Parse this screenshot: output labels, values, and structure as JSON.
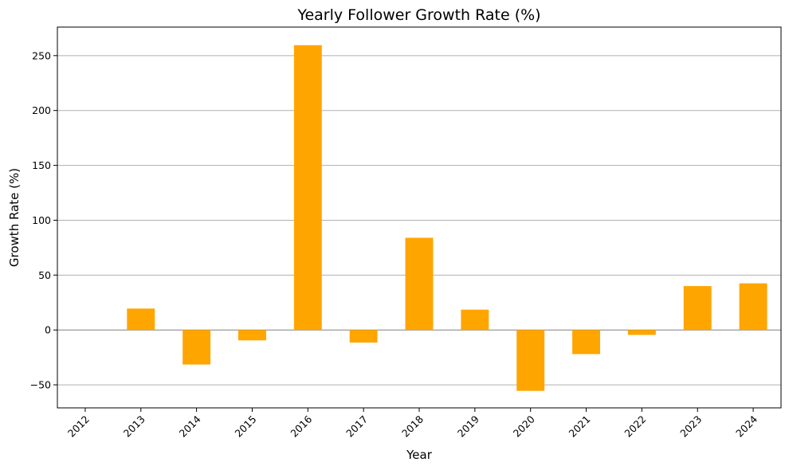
{
  "chart_data": {
    "type": "bar",
    "title": "Yearly Follower Growth Rate (%)",
    "xlabel": "Year",
    "ylabel": "Growth Rate (%)",
    "categories": [
      "2012",
      "2013",
      "2014",
      "2015",
      "2016",
      "2017",
      "2018",
      "2019",
      "2020",
      "2021",
      "2022",
      "2023",
      "2024"
    ],
    "values": [
      null,
      19.5,
      -31.5,
      -9.5,
      259.5,
      -11.5,
      84,
      18.5,
      -55.5,
      -22,
      -4.5,
      40,
      42.5
    ],
    "ylim": [
      -71,
      276
    ],
    "yticks": [
      -50,
      0,
      50,
      100,
      150,
      200,
      250
    ],
    "ytick_labels": [
      "−50",
      "0",
      "50",
      "100",
      "150",
      "200",
      "250"
    ],
    "grid": "y",
    "zero_line": true,
    "legend": "none",
    "bar_color": "#FFA500",
    "zero_line_color": "#808080",
    "grid_color": "#b0b0b0"
  }
}
